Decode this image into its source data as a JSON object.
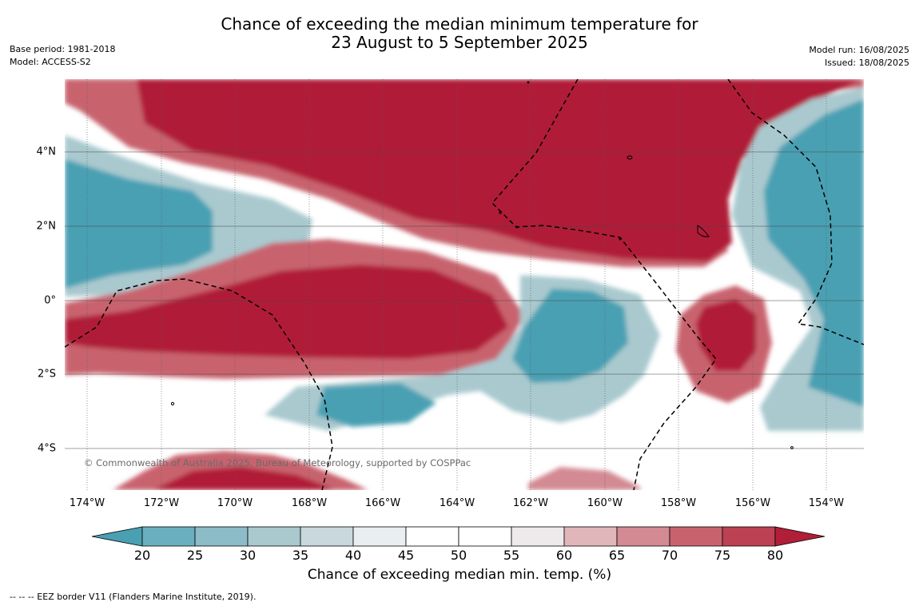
{
  "title": {
    "line1": "Chance of exceeding the median minimum temperature for",
    "line2": "23 August to 5 September 2025"
  },
  "meta_left": {
    "base_period": "Base period: 1981-2018",
    "model": "Model: ACCESS-S2"
  },
  "meta_right": {
    "model_run": "Model run: 16/08/2025",
    "issued": "Issued: 18/08/2025"
  },
  "map": {
    "copyright": "© Commonwealth of Australia 2025, Bureau of Meteorology, supported by COSPPac",
    "lat_labels": [
      "4°N",
      "2°N",
      "0°",
      "2°S",
      "4°S"
    ],
    "lon_labels": [
      "174°W",
      "172°W",
      "170°W",
      "168°W",
      "166°W",
      "164°W",
      "162°W",
      "160°W",
      "158°W",
      "156°W",
      "154°W"
    ]
  },
  "colorbar": {
    "ticks": [
      "20",
      "25",
      "30",
      "35",
      "40",
      "45",
      "50",
      "55",
      "60",
      "65",
      "70",
      "75",
      "80"
    ],
    "colors": [
      "#4aa0b3",
      "#6aafbf",
      "#8bbcc8",
      "#a9c9cf",
      "#c8d8dc",
      "#e9eff1",
      "#ffffff",
      "#ffffff",
      "#eeeaeb",
      "#e1b6bb",
      "#d38a93",
      "#c8636e",
      "#bc4152",
      "#b01e38"
    ],
    "label": "Chance of exceeding median min. temp. (%)"
  },
  "footer": {
    "eez_note": "--  --  -- EEZ border V11 (Flanders Marine Institute, 2019)."
  }
}
